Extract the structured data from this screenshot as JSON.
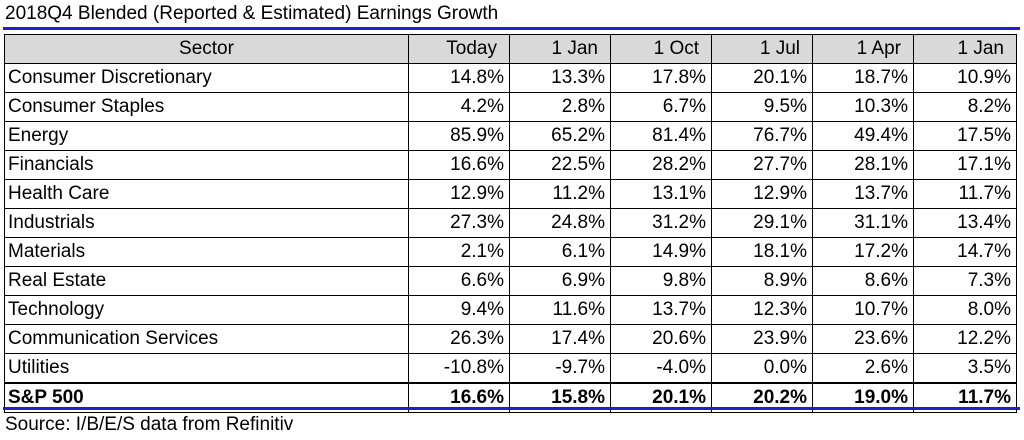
{
  "title": "2018Q4 Blended (Reported & Estimated) Earnings Growth",
  "table": {
    "headers": [
      "Sector",
      "Today",
      "1 Jan",
      "1 Oct",
      "1 Jul",
      "1 Apr",
      "1 Jan"
    ],
    "rows": [
      [
        "Consumer Discretionary",
        "14.8%",
        "13.3%",
        "17.8%",
        "20.1%",
        "18.7%",
        "10.9%"
      ],
      [
        "Consumer Staples",
        "4.2%",
        "2.8%",
        "6.7%",
        "9.5%",
        "10.3%",
        "8.2%"
      ],
      [
        "Energy",
        "85.9%",
        "65.2%",
        "81.4%",
        "76.7%",
        "49.4%",
        "17.5%"
      ],
      [
        "Financials",
        "16.6%",
        "22.5%",
        "28.2%",
        "27.7%",
        "28.1%",
        "17.1%"
      ],
      [
        "Health Care",
        "12.9%",
        "11.2%",
        "13.1%",
        "12.9%",
        "13.7%",
        "11.7%"
      ],
      [
        "Industrials",
        "27.3%",
        "24.8%",
        "31.2%",
        "29.1%",
        "31.1%",
        "13.4%"
      ],
      [
        "Materials",
        "2.1%",
        "6.1%",
        "14.9%",
        "18.1%",
        "17.2%",
        "14.7%"
      ],
      [
        "Real Estate",
        "6.6%",
        "6.9%",
        "9.8%",
        "8.9%",
        "8.6%",
        "7.3%"
      ],
      [
        "Technology",
        "9.4%",
        "11.6%",
        "13.7%",
        "12.3%",
        "10.7%",
        "8.0%"
      ],
      [
        "Communication Services",
        "26.3%",
        "17.4%",
        "20.6%",
        "23.9%",
        "23.6%",
        "12.2%"
      ],
      [
        "Utilities",
        "-10.8%",
        "-9.7%",
        "-4.0%",
        "0.0%",
        "2.6%",
        "3.5%"
      ]
    ],
    "total_row": [
      "S&P 500",
      "16.6%",
      "15.8%",
      "20.1%",
      "20.2%",
      "19.0%",
      "11.7%"
    ]
  },
  "source": "Source: I/B/E/S data from Refinitiv",
  "colors": {
    "rule": "#1f1fd0",
    "header_bg": "#d9d9d9"
  }
}
